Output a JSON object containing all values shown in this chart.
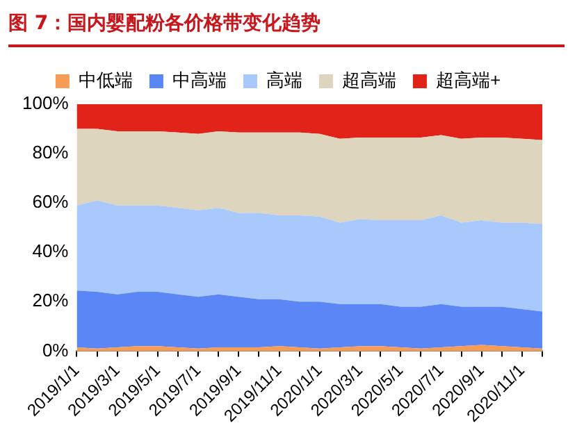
{
  "chart_data": {
    "type": "area",
    "stacked": true,
    "title": "图 7：国内婴配粉各价格带变化趋势",
    "categories": [
      "2019/1/1",
      null,
      "2019/3/1",
      null,
      "2019/5/1",
      null,
      "2019/7/1",
      null,
      "2019/9/1",
      null,
      "2019/11/1",
      null,
      "2020/1/1",
      null,
      "2020/3/1",
      null,
      "2020/5/1",
      null,
      "2020/7/1",
      null,
      "2020/9/1",
      null,
      "2020/11/1",
      null
    ],
    "series": [
      {
        "name": "中低端",
        "color": "#f59d56",
        "values": [
          1.5,
          1,
          1.5,
          2,
          2,
          1.5,
          1,
          1.5,
          1.5,
          1.5,
          2,
          1.5,
          1,
          1.5,
          2,
          2,
          1.5,
          1,
          1.5,
          2,
          2.5,
          2,
          1.5,
          1
        ]
      },
      {
        "name": "中高端",
        "color": "#5b86f5",
        "values": [
          23,
          23,
          21.5,
          22,
          22,
          21.5,
          21,
          21.5,
          20.5,
          19.5,
          19,
          18.5,
          19,
          17.5,
          17,
          17,
          16.5,
          17,
          17.5,
          16,
          15.5,
          16,
          15.5,
          15
        ]
      },
      {
        "name": "高端",
        "color": "#a9c8fb",
        "values": [
          34.5,
          37,
          36,
          35,
          35,
          35,
          35,
          35,
          34,
          35,
          34,
          35,
          34.5,
          33,
          34.5,
          34,
          35,
          35,
          36,
          34,
          35,
          34,
          35,
          35.5
        ]
      },
      {
        "name": "超高端",
        "color": "#ddd5bd",
        "values": [
          31,
          29,
          30,
          30,
          30,
          30.5,
          31,
          31,
          32.5,
          32.5,
          33.5,
          33.5,
          33.5,
          34,
          33,
          33.5,
          33.5,
          33.5,
          32.5,
          34,
          33.5,
          34.5,
          34,
          34
        ]
      },
      {
        "name": "超高端+",
        "color": "#e2231a",
        "values": [
          10,
          10,
          11,
          11,
          11,
          11.5,
          12,
          11,
          11.5,
          11.5,
          11.5,
          11.5,
          12,
          14,
          13.5,
          13.5,
          13.5,
          13.5,
          12.5,
          14,
          13.5,
          13.5,
          14,
          14.5
        ]
      }
    ],
    "ylim": [
      0,
      100
    ],
    "yticks": [
      {
        "value": 0,
        "label": "0%"
      },
      {
        "value": 20,
        "label": "20%"
      },
      {
        "value": 40,
        "label": "40%"
      },
      {
        "value": 60,
        "label": "60%"
      },
      {
        "value": 80,
        "label": "80%"
      },
      {
        "value": 100,
        "label": "100%"
      }
    ],
    "grid": false,
    "legend": "top"
  }
}
